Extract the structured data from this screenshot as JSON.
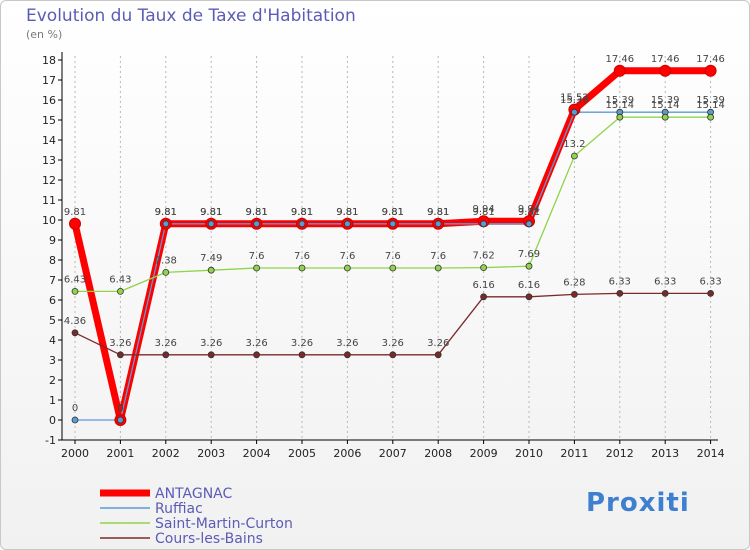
{
  "chart_data": {
    "type": "line",
    "title": "Evolution du Taux de Taxe d'Habitation",
    "ylabel": "(en %)",
    "xlabel": "",
    "x": [
      "2000",
      "2001",
      "2002",
      "2003",
      "2004",
      "2005",
      "2006",
      "2007",
      "2008",
      "2009",
      "2010",
      "2011",
      "2012",
      "2013",
      "2014"
    ],
    "yticks": [
      -1,
      0,
      1,
      2,
      3,
      4,
      5,
      6,
      7,
      8,
      9,
      10,
      11,
      12,
      13,
      14,
      15,
      16,
      17,
      18
    ],
    "ylim": [
      -1,
      18
    ],
    "grid": "vertical dashed",
    "legend_position": "bottom-left",
    "series": [
      {
        "name": "ANTAGNAC",
        "color": "#ff0000",
        "width": "thick",
        "values": [
          9.81,
          0,
          9.81,
          9.81,
          9.81,
          9.81,
          9.81,
          9.81,
          9.81,
          9.94,
          9.94,
          15.52,
          17.46,
          17.46,
          17.46
        ],
        "labels": [
          "9.81",
          "0",
          "9.81",
          "9.81",
          "9.81",
          "9.81",
          "9.81",
          "9.81",
          "9.81",
          "9.94",
          "9.94",
          "15.52",
          "17.46",
          "17.46",
          "17.46"
        ]
      },
      {
        "name": "Ruffiac",
        "color": "#5b9bd5",
        "width": "thin",
        "values": [
          0,
          0,
          9.81,
          9.81,
          9.81,
          9.81,
          9.81,
          9.81,
          9.81,
          9.81,
          9.81,
          15.39,
          15.39,
          15.39,
          15.39
        ],
        "labels": [
          "0",
          "0",
          "9.81",
          "9.81",
          "9.81",
          "9.81",
          "9.81",
          "9.81",
          "9.81",
          "9.81",
          "9.81",
          "15.39",
          "15.39",
          "15.39",
          "15.39"
        ]
      },
      {
        "name": "Saint-Martin-Curton",
        "color": "#8fd44a",
        "width": "thin",
        "values": [
          6.43,
          6.43,
          7.38,
          7.49,
          7.6,
          7.6,
          7.6,
          7.6,
          7.6,
          7.62,
          7.69,
          13.2,
          15.14,
          15.14,
          15.14
        ],
        "labels": [
          "6.43",
          "6.43",
          "7.38",
          "7.49",
          "7.6",
          "7.6",
          "7.6",
          "7.6",
          "7.6",
          "7.62",
          "7.69",
          "13.2",
          "15.14",
          "15.14",
          "15.14"
        ]
      },
      {
        "name": "Cours-les-Bains",
        "color": "#7a2a2a",
        "width": "thin",
        "values": [
          4.36,
          3.26,
          3.26,
          3.26,
          3.26,
          3.26,
          3.26,
          3.26,
          3.26,
          6.16,
          6.16,
          6.28,
          6.33,
          6.33,
          6.33
        ],
        "labels": [
          "4.36",
          "3.26",
          "3.26",
          "3.26",
          "3.26",
          "3.26",
          "3.26",
          "3.26",
          "3.26",
          "6.16",
          "6.16",
          "6.28",
          "6.33",
          "6.33",
          "6.33"
        ]
      }
    ]
  },
  "brand": {
    "logo_text": "Proxiti"
  },
  "colors": {
    "title": "#5b5bb8",
    "legend_text": "#5b5bb8",
    "axis": "#000000",
    "grid": "#b8b8b8"
  }
}
